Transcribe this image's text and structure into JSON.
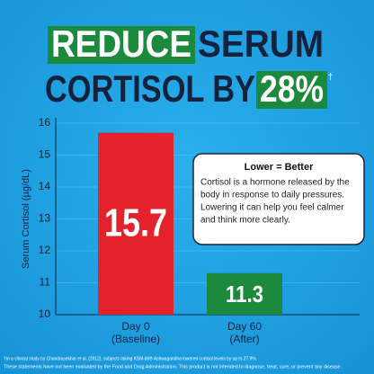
{
  "chart_data": {
    "type": "bar",
    "title_parts": [
      {
        "text": "REDUCE",
        "highlight": true
      },
      {
        "text": "SERUM",
        "highlight": false
      },
      {
        "text": "CORTISOL BY",
        "highlight": false
      },
      {
        "text": "28%",
        "highlight": true
      },
      {
        "text": "†",
        "highlight": false
      }
    ],
    "ylabel": "Serum Cortisol (µg/dL)",
    "categories": [
      "Day 0",
      "Day 60"
    ],
    "category_subtitles": [
      "(Baseline)",
      "(After)"
    ],
    "values": [
      15.7,
      11.3
    ],
    "colors": [
      "#e3222b",
      "#1b8a3c"
    ],
    "ylim": [
      10,
      16
    ],
    "yticks": [
      10,
      11,
      12,
      13,
      14,
      15,
      16
    ],
    "grid": true,
    "callout": {
      "title": "Lower = Better",
      "lines": [
        "Cortisol is a hormone released by the",
        "body in response to daily pressures.",
        "Lowering it can help you feel calmer",
        "and think more clearly."
      ]
    },
    "footnotes": [
      "†In a clinical study by Chandrasekhar et al. (2012), subjects taking KSM-66® Ashwagandha lowered cortisol levels by up to 27.9%.",
      "These statements have not been evaluated by the Food and Drug Administration. This product is not intended to diagnose, treat, cure, or prevent any disease."
    ]
  }
}
